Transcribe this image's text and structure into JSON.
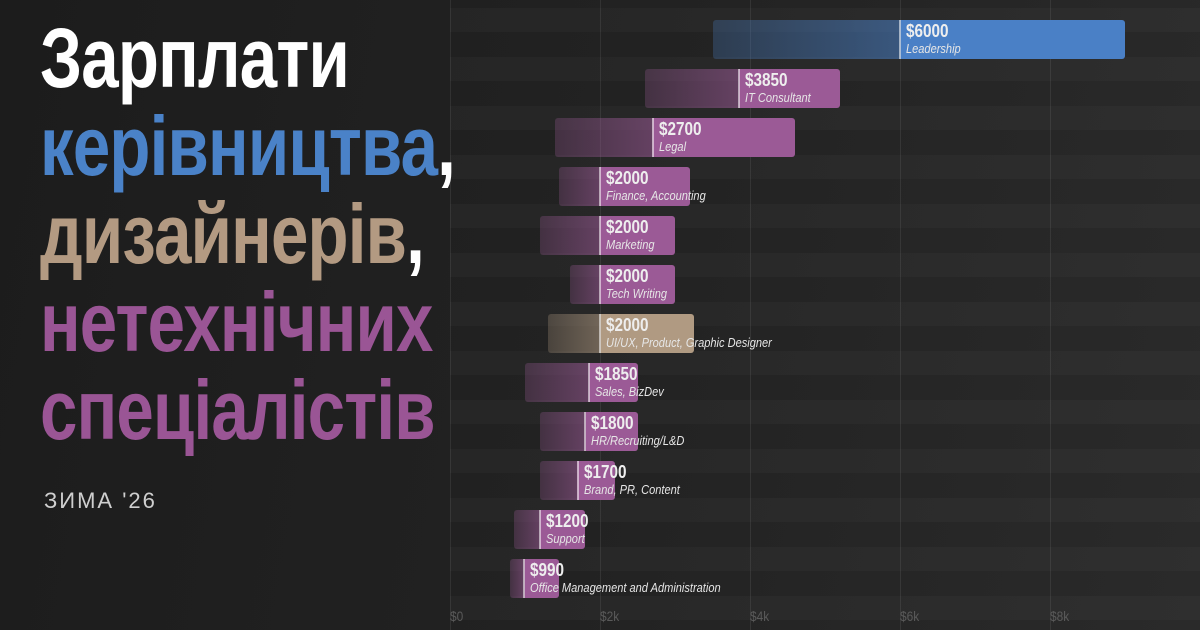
{
  "title": {
    "line1": "Зарплати",
    "line2": "керівництва",
    "line3": "дизайнерів",
    "line4": "нетехнічних",
    "line5": "спеціалістів",
    "comma": ",",
    "subtitle": "ЗИМА '26"
  },
  "colors": {
    "leadership": "#4a80c6",
    "design": "#b09a82",
    "nontech": "#9b5a96",
    "text": "#ffffff"
  },
  "chart_data": {
    "type": "bar",
    "orientation": "horizontal-range",
    "xlabel": "",
    "ylabel": "",
    "xlim": [
      0,
      10000
    ],
    "xticks": [
      0,
      2000,
      4000,
      6000,
      8000
    ],
    "xtick_labels": [
      "$0",
      "$2k",
      "$4k",
      "$6k",
      "$8k"
    ],
    "grid": true,
    "series": [
      {
        "category": "Leadership",
        "median": 6000,
        "median_label": "$6000",
        "low": 3500,
        "high": 9000,
        "group": "leadership"
      },
      {
        "category": "IT Consultant",
        "median": 3850,
        "median_label": "$3850",
        "low": 2600,
        "high": 5200,
        "group": "nontech"
      },
      {
        "category": "Legal",
        "median": 2700,
        "median_label": "$2700",
        "low": 1400,
        "high": 4600,
        "group": "nontech"
      },
      {
        "category": "Finance, Accounting",
        "median": 2000,
        "median_label": "$2000",
        "low": 1450,
        "high": 3200,
        "group": "nontech"
      },
      {
        "category": "Marketing",
        "median": 2000,
        "median_label": "$2000",
        "low": 1200,
        "high": 3000,
        "group": "nontech"
      },
      {
        "category": "Tech Writing",
        "median": 2000,
        "median_label": "$2000",
        "low": 1600,
        "high": 3000,
        "group": "nontech"
      },
      {
        "category": "UI/UX, Product, Graphic Designer",
        "median": 2000,
        "median_label": "$2000",
        "low": 1300,
        "high": 3250,
        "group": "design"
      },
      {
        "category": "Sales, BizDev",
        "median": 1850,
        "median_label": "$1850",
        "low": 1000,
        "high": 2500,
        "group": "nontech"
      },
      {
        "category": "HR/Recruiting/L&D",
        "median": 1800,
        "median_label": "$1800",
        "low": 1200,
        "high": 2500,
        "group": "nontech"
      },
      {
        "category": "Brand, PR, Content",
        "median": 1700,
        "median_label": "$1700",
        "low": 1200,
        "high": 2200,
        "group": "nontech"
      },
      {
        "category": "Support",
        "median": 1200,
        "median_label": "$1200",
        "low": 850,
        "high": 1800,
        "group": "nontech"
      },
      {
        "category": "Office Management and Administration",
        "median": 990,
        "median_label": "$990",
        "low": 800,
        "high": 1450,
        "group": "nontech"
      }
    ]
  }
}
